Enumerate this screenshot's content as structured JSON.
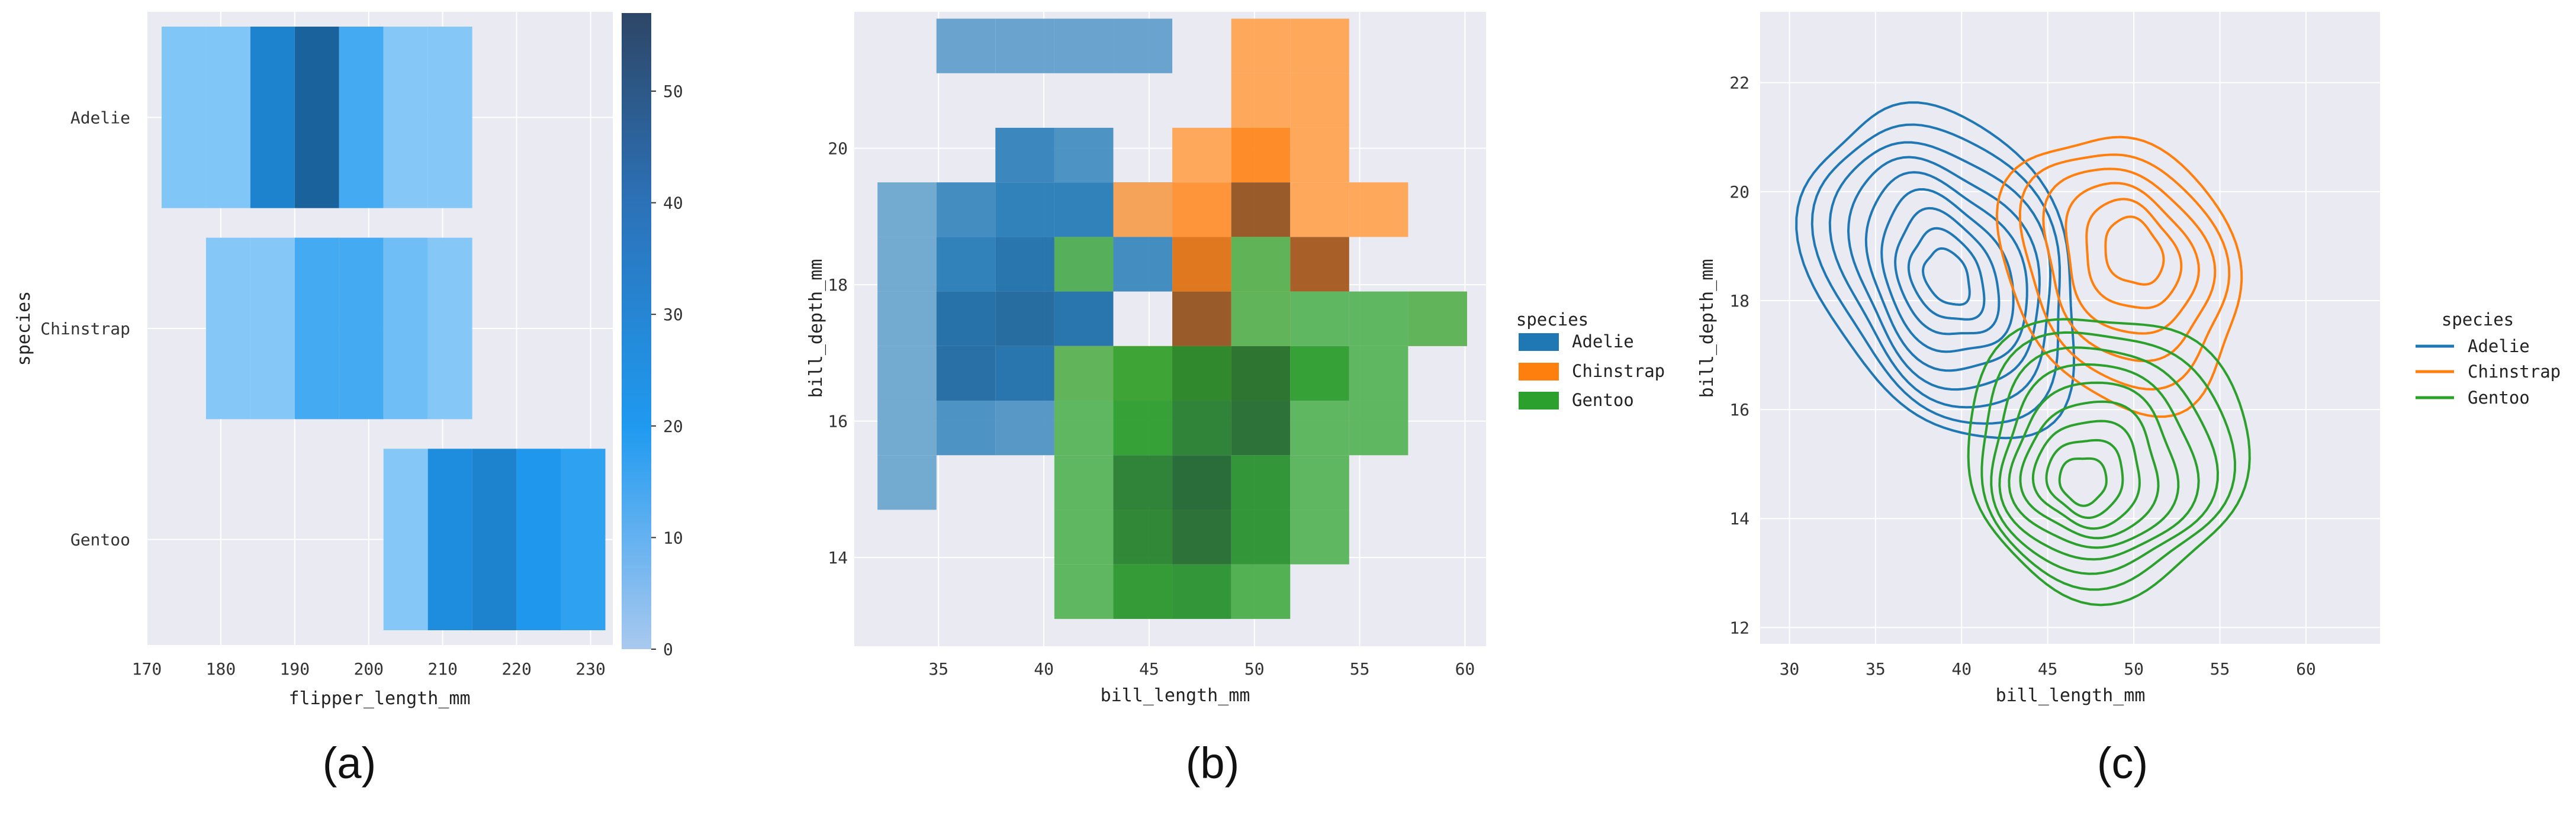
{
  "chart_data": [
    {
      "panel_label": "(a)",
      "type": "heatmap",
      "xlabel": "flipper_length_mm",
      "ylabel": "species",
      "xlim": [
        170,
        233
      ],
      "xticks": [
        170,
        180,
        190,
        200,
        210,
        220,
        230
      ],
      "categories": [
        "Adelie",
        "Chinstrap",
        "Gentoo"
      ],
      "bin_edges": [
        172,
        178,
        184,
        190,
        196,
        202,
        208,
        214,
        220,
        226,
        232
      ],
      "counts": [
        [
          6,
          6,
          40,
          57,
          20,
          5,
          5,
          0,
          0,
          0
        ],
        [
          0,
          5,
          5,
          20,
          20,
          10,
          5,
          0,
          0,
          0
        ],
        [
          0,
          0,
          0,
          0,
          0,
          5,
          35,
          40,
          30,
          25
        ]
      ],
      "colorbar": {
        "min": 0,
        "max": 57,
        "ticks": [
          0,
          10,
          20,
          30,
          40,
          50
        ]
      },
      "colors": {
        "base": "#1f9af0",
        "dark": "#2d4666"
      },
      "grid": true
    },
    {
      "panel_label": "(b)",
      "type": "heatmap",
      "xlabel": "bill_length_mm",
      "ylabel": "bill_depth_mm",
      "xlim": [
        31,
        61
      ],
      "ylim": [
        12.7,
        22
      ],
      "xticks": [
        35,
        40,
        45,
        50,
        55,
        60
      ],
      "yticks": [
        14,
        16,
        18,
        20
      ],
      "x_edges": [
        32.1,
        34.9,
        37.7,
        40.5,
        43.3,
        46.1,
        48.9,
        51.7,
        54.5,
        57.3,
        60.1
      ],
      "y_edges": [
        13.1,
        13.9,
        14.7,
        15.5,
        16.3,
        17.1,
        17.9,
        18.7,
        19.5,
        20.3,
        21.1,
        21.9
      ],
      "series": [
        {
          "name": "Adelie",
          "color": "#1f77b4",
          "counts": [
            [
              0,
              0,
              0,
              0,
              0,
              0,
              0,
              0,
              0,
              0
            ],
            [
              0,
              0,
              0,
              0,
              0,
              0,
              0,
              0,
              0,
              0
            ],
            [
              2,
              0,
              0,
              0,
              0,
              0,
              0,
              0,
              0,
              0
            ],
            [
              2,
              6,
              5,
              0,
              0,
              0,
              0,
              0,
              0,
              0
            ],
            [
              2,
              14,
              12,
              0,
              0,
              0,
              0,
              0,
              0,
              0
            ],
            [
              2,
              13,
              15,
              12,
              0,
              0,
              0,
              0,
              0,
              0
            ],
            [
              2,
              9,
              12,
              22,
              7,
              0,
              0,
              0,
              0,
              0
            ],
            [
              2,
              7,
              9,
              9,
              8,
              0,
              0,
              0,
              0,
              0
            ],
            [
              0,
              0,
              8,
              6,
              0,
              0,
              0,
              0,
              0,
              0
            ],
            [
              0,
              0,
              0,
              0,
              0,
              0,
              0,
              0,
              0,
              0
            ],
            [
              0,
              3,
              3,
              3,
              3,
              0,
              0,
              0,
              0,
              0
            ]
          ]
        },
        {
          "name": "Chinstrap",
          "color": "#ff7f0e",
          "counts": [
            [
              0,
              0,
              0,
              0,
              0,
              0,
              0,
              0,
              0,
              0
            ],
            [
              0,
              0,
              0,
              0,
              0,
              0,
              0,
              0,
              0,
              0
            ],
            [
              0,
              0,
              0,
              0,
              0,
              0,
              0,
              0,
              0,
              0
            ],
            [
              0,
              0,
              0,
              0,
              0,
              0,
              0,
              0,
              0,
              0
            ],
            [
              0,
              0,
              0,
              2,
              2,
              10,
              2,
              0,
              0,
              0
            ],
            [
              0,
              0,
              0,
              0,
              0,
              13,
              2,
              0,
              0,
              2
            ],
            [
              0,
              0,
              0,
              0,
              0,
              8,
              3,
              12,
              0,
              0
            ],
            [
              0,
              0,
              0,
              0,
              2,
              4,
              13,
              2,
              2,
              0
            ],
            [
              0,
              0,
              0,
              0,
              0,
              2,
              5,
              2,
              0,
              0
            ],
            [
              0,
              0,
              0,
              0,
              0,
              0,
              2,
              2,
              0,
              0
            ],
            [
              0,
              0,
              0,
              0,
              0,
              0,
              2,
              2,
              0,
              0
            ]
          ]
        },
        {
          "name": "Gentoo",
          "color": "#2ca02c",
          "counts": [
            [
              0,
              0,
              0,
              4,
              9,
              10,
              5,
              0,
              0,
              0
            ],
            [
              0,
              0,
              0,
              4,
              12,
              16,
              10,
              4,
              0,
              0
            ],
            [
              0,
              0,
              0,
              4,
              13,
              17,
              10,
              4,
              0,
              0
            ],
            [
              0,
              0,
              0,
              4,
              8,
              13,
              16,
              4,
              4,
              0
            ],
            [
              0,
              0,
              0,
              4,
              7,
              11,
              15,
              8,
              4,
              0
            ],
            [
              0,
              0,
              0,
              0,
              0,
              0,
              4,
              4,
              4,
              4
            ],
            [
              0,
              0,
              0,
              4,
              0,
              0,
              4,
              0,
              0,
              0
            ],
            [
              0,
              0,
              0,
              0,
              0,
              0,
              0,
              0,
              0,
              0
            ],
            [
              0,
              0,
              0,
              0,
              0,
              0,
              0,
              0,
              0,
              0
            ],
            [
              0,
              0,
              0,
              0,
              0,
              0,
              0,
              0,
              0,
              0
            ],
            [
              0,
              0,
              0,
              0,
              0,
              0,
              0,
              0,
              0,
              0
            ]
          ]
        }
      ],
      "legend": {
        "title": "species",
        "placement": "outside-right"
      },
      "grid": true
    },
    {
      "panel_label": "(c)",
      "type": "line",
      "subtype": "kde-contour",
      "xlabel": "bill_length_mm",
      "ylabel": "bill_depth_mm",
      "xlim": [
        28.3,
        64.3
      ],
      "ylim": [
        11.7,
        23.3
      ],
      "xticks": [
        30,
        35,
        40,
        45,
        50,
        55,
        60
      ],
      "yticks": [
        12,
        14,
        16,
        18,
        20,
        22
      ],
      "series": [
        {
          "name": "Adelie",
          "color": "#1f77b4",
          "center": [
            39.2,
            18.4
          ],
          "outer_extent": {
            "x": [
              31.8,
              46.2
            ],
            "y": [
              15.3,
              21.8
            ]
          },
          "levels": 9
        },
        {
          "name": "Chinstrap",
          "color": "#ff7f0e",
          "center": [
            50.2,
            19.0
          ],
          "outer_extent": {
            "x": [
              42.8,
              55.8
            ],
            "y": [
              15.9,
              21.2
            ]
          },
          "levels": 6
        },
        {
          "name": "Gentoo",
          "color": "#2ca02c",
          "center": [
            46.8,
            14.6
          ],
          "outer_extent": {
            "x": [
              40.2,
              56.5
            ],
            "y": [
              12.6,
              17.8
            ]
          },
          "levels": 9
        }
      ],
      "legend": {
        "title": "species",
        "placement": "outside-right"
      },
      "grid": true
    }
  ]
}
